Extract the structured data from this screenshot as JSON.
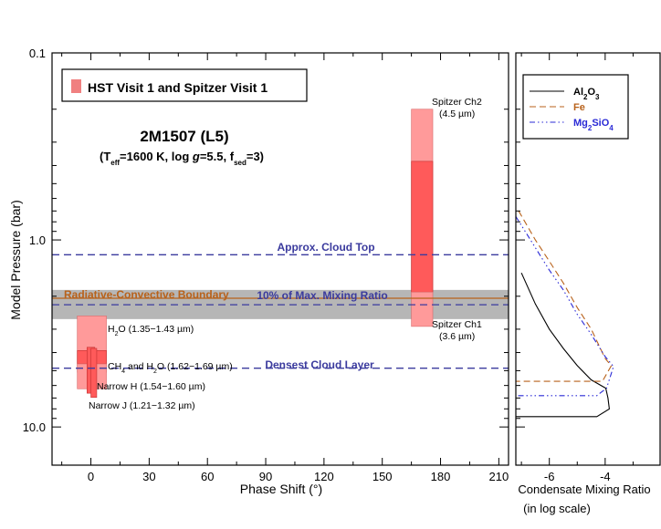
{
  "chart_data": [
    {
      "type": "box-range",
      "title": "2M1507 (L5)",
      "subtitle": {
        "t": "(T",
        "eff": "eff",
        "rest": "=1600 K, log ",
        "g": "g",
        "rest2": "=5.5, f",
        "sed": "sed",
        "rest3": "=3)"
      },
      "xlabel": "Phase Shift (°)",
      "ylabel": "Model Pressure (bar)",
      "xlim": [
        -20,
        215
      ],
      "ylim_log": [
        0.1,
        16
      ],
      "xticks": [
        0,
        30,
        60,
        90,
        120,
        150,
        180,
        210
      ],
      "xtick_labels": [
        "0",
        "30",
        "60",
        "90",
        "120",
        "150",
        "180",
        "210"
      ],
      "yticks": [
        0.1,
        1.0,
        10.0
      ],
      "ytick_labels": [
        "0.1",
        "1.0",
        "10.0"
      ],
      "legend": {
        "label": "HST Visit 1 and Spitzer Visit 1",
        "color": "#f08080",
        "position": "top-left"
      },
      "boxes": [
        {
          "name": "H2O (1.35-1.43 um)",
          "x0": -7,
          "x1": 8,
          "p_top": 2.55,
          "p_bot": 5.1,
          "shade": "light",
          "labelParts": [
            "H",
            "2",
            "O (1.35−1.43 µm)"
          ]
        },
        {
          "name": "H2O (1.35-1.43 um) core",
          "x0": -7,
          "x1": 8,
          "p_top": 3.9,
          "p_bot": 4.6,
          "shade": "dark"
        },
        {
          "name": "CH4 and H2O (1.62-1.69 um)",
          "x0": -7,
          "x1": 8,
          "p_top": 4.6,
          "p_bot": 6.25,
          "shade": "light",
          "labelParts": [
            "CH",
            "4",
            " and H",
            "2",
            "O (1.62−1.69 µm)"
          ]
        },
        {
          "name": "Narrow H (1.54-1.60 um)",
          "x0": -2,
          "x1": 2,
          "p_top": 3.75,
          "p_bot": 6.6,
          "shade": "dark",
          "labelParts": [
            "Narrow H (1.54−1.60 µm)"
          ]
        },
        {
          "name": "Narrow J (1.21-1.32 um)",
          "x0": 0,
          "x1": 3,
          "p_top": 3.8,
          "p_bot": 6.95,
          "shade": "dark",
          "labelParts": [
            "Narrow J (1.21−1.32 µm)"
          ]
        },
        {
          "name": "Spitzer Ch2 (4.5 um)",
          "x0": 165,
          "x1": 176,
          "p_top": 0.2,
          "p_bot": 1.9,
          "shade": "light"
        },
        {
          "name": "Spitzer Ch2 (4.5 um) core",
          "x0": 165,
          "x1": 176,
          "p_top": 0.38,
          "p_bot": 1.9,
          "shade": "dark"
        },
        {
          "name": "Spitzer Ch1 (3.6 um)",
          "x0": 165,
          "x1": 176,
          "p_top": 1.9,
          "p_bot": 2.9,
          "shade": "light"
        }
      ],
      "box_labels": {
        "ch2_line1": "Spitzer Ch2",
        "ch2_line2": "(4.5 µm)",
        "ch1_line1": "Spitzer Ch1",
        "ch1_line2": "(3.6 µm)"
      },
      "reference_lines": [
        {
          "label": "Approx. Cloud Top",
          "pressure": 1.2,
          "style": "dashed",
          "color": "#3b3b9e"
        },
        {
          "label": "10% of Max. Mixing Ratio",
          "pressure": 2.22,
          "style": "dashed",
          "color": "#3b3b9e"
        },
        {
          "label": "Densest Cloud Layer",
          "pressure": 4.85,
          "style": "dashed",
          "color": "#3b3b9e"
        },
        {
          "label": "Radiative-Convective Boundary",
          "pressure": 2.05,
          "style": "solid",
          "color": "#b8621b"
        }
      ],
      "band": {
        "p_top": 1.85,
        "p_bot": 2.65,
        "color": "#a9a9a9"
      }
    },
    {
      "type": "line",
      "xlabel": "Condensate Mixing Ratio",
      "xlabel2": "(in log scale)",
      "xlim": [
        -7.2,
        -2.0
      ],
      "ylim_log": [
        0.1,
        16
      ],
      "xticks": [
        -6,
        -4
      ],
      "xtick_labels": [
        "-6",
        "-4"
      ],
      "legend": {
        "position": "top-left"
      },
      "series": [
        {
          "name": "Al2O3",
          "parts": [
            "Al",
            "2",
            "O",
            "3"
          ],
          "color": "#000000",
          "dash": "",
          "points": [
            [
              -7.0,
              1.5
            ],
            [
              -6.5,
              2.2
            ],
            [
              -6.0,
              3.0
            ],
            [
              -5.5,
              3.8
            ],
            [
              -5.0,
              4.7
            ],
            [
              -4.5,
              5.6
            ],
            [
              -3.98,
              6.2
            ],
            [
              -3.9,
              7.0
            ],
            [
              -3.85,
              8.0
            ],
            [
              -4.3,
              8.8
            ],
            [
              -7.2,
              8.8
            ]
          ]
        },
        {
          "name": "Fe",
          "parts": [
            "Fe"
          ],
          "color": "#b8621b",
          "dash": "7,4",
          "points": [
            [
              -7.1,
              0.7
            ],
            [
              -6.5,
              1.0
            ],
            [
              -6.0,
              1.3
            ],
            [
              -5.5,
              1.7
            ],
            [
              -5.0,
              2.3
            ],
            [
              -4.5,
              3.0
            ],
            [
              -4.0,
              4.3
            ],
            [
              -3.78,
              4.7
            ],
            [
              -4.1,
              5.7
            ],
            [
              -7.2,
              5.7
            ]
          ]
        },
        {
          "name": "Mg2SiO4",
          "parts": [
            "Mg",
            "2",
            "SiO",
            "4"
          ],
          "color": "#2a2ad6",
          "dash": "6,3,1.5,3,1.5,3,1.5,3",
          "points": [
            [
              -7.2,
              0.75
            ],
            [
              -6.5,
              1.1
            ],
            [
              -6.0,
              1.45
            ],
            [
              -5.5,
              1.85
            ],
            [
              -5.0,
              2.5
            ],
            [
              -4.5,
              3.2
            ],
            [
              -4.0,
              4.2
            ],
            [
              -3.7,
              4.75
            ],
            [
              -3.95,
              6.2
            ],
            [
              -4.3,
              6.8
            ],
            [
              -7.2,
              6.8
            ]
          ]
        }
      ]
    }
  ]
}
